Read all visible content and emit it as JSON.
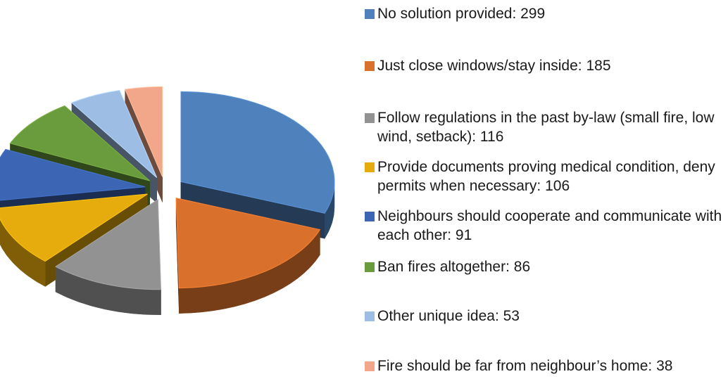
{
  "chart_data": {
    "type": "pie",
    "title": "",
    "legend_position": "right",
    "style": "3d exploded",
    "slices": [
      {
        "label": "No solution provided",
        "value": 299,
        "legend_text": "No solution provided: 299",
        "color": "#4f81bd"
      },
      {
        "label": "Just close windows/stay inside",
        "value": 185,
        "legend_text": "Just close windows/stay inside: 185",
        "color": "#d9712c"
      },
      {
        "label": "Follow regulations in the past by-law (small fire, low wind, setback)",
        "value": 116,
        "legend_text": "Follow regulations in the past by-law (small fire, low wind, setback): 116",
        "color": "#929292"
      },
      {
        "label": "Provide documents proving medical condition, deny permits when necessary",
        "value": 106,
        "legend_text": "Provide documents proving medical condition, deny permits when necessary: 106",
        "color": "#e6ab0c"
      },
      {
        "label": "Neighbours should cooperate and communicate with each other",
        "value": 91,
        "legend_text": "Neighbours should cooperate and communicate with each other: 91",
        "color": "#3c66b4"
      },
      {
        "label": "Ban fires altogether",
        "value": 86,
        "legend_text": "Ban fires altogether: 86",
        "color": "#6a9b3c"
      },
      {
        "label": "Other unique idea",
        "value": 53,
        "legend_text": "Other unique idea: 53",
        "color": "#9dbde4"
      },
      {
        "label": "Fire should be far from neighbour’s home",
        "value": 38,
        "legend_text": "Fire should be far from neighbour’s home: 38",
        "color": "#f2a78a"
      }
    ]
  }
}
